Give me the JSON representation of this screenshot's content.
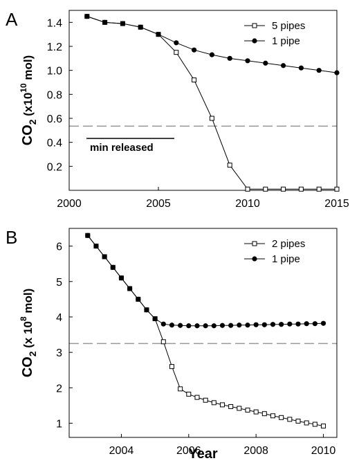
{
  "chart_data": [
    {
      "type": "line",
      "panel_label": "A",
      "ylabel": {
        "main": "CO",
        "sub": "2",
        "mid": " (x10",
        "sup": "10",
        "tail": " mol)"
      },
      "x": [
        2001,
        2002,
        2003,
        2004,
        2005,
        2006,
        2007,
        2008,
        2009,
        2010,
        2011,
        2012,
        2013,
        2014,
        2015
      ],
      "series": [
        {
          "name": "5 pipes",
          "color": "#000000",
          "marker": "square-open",
          "values": [
            1.45,
            1.4,
            1.39,
            1.36,
            1.3,
            1.15,
            0.92,
            0.6,
            0.21,
            0.01,
            0.01,
            0.01,
            0.01,
            0.01,
            0.01
          ]
        },
        {
          "name": "1 pipe",
          "color": "#000000",
          "marker": "circle-filled",
          "values": [
            1.45,
            1.4,
            1.39,
            1.36,
            1.3,
            1.23,
            1.17,
            1.13,
            1.1,
            1.08,
            1.06,
            1.04,
            1.02,
            1.0,
            0.98
          ]
        }
      ],
      "xlim": [
        2000,
        2015
      ],
      "xticks": [
        2000,
        2005,
        2010,
        2015
      ],
      "ylim": [
        0,
        1.5
      ],
      "yticks": [
        0.2,
        0.4,
        0.6,
        0.8,
        {
          "value": 1,
          "label": "1.0"
        },
        1.2,
        1.4
      ],
      "hline": 0.535,
      "hline_color": "#999999",
      "annotation": "min released",
      "legend": "upper-right"
    },
    {
      "type": "line",
      "panel_label": "B",
      "ylabel": {
        "main": "CO",
        "sub": "2",
        "mid": " (x 10",
        "sup": "8",
        "tail": " mol)"
      },
      "xlabel": "Year",
      "x": [
        2003,
        2003.25,
        2003.5,
        2003.75,
        2004,
        2004.25,
        2004.5,
        2004.75,
        2005,
        2005.25,
        2005.5,
        2005.75,
        2006,
        2006.25,
        2006.5,
        2006.75,
        2007,
        2007.25,
        2007.5,
        2007.75,
        2008,
        2008.25,
        2008.5,
        2008.75,
        2009,
        2009.25,
        2009.5,
        2009.75,
        2010
      ],
      "series": [
        {
          "name": "2 pipes",
          "color": "#000000",
          "marker": "square-open",
          "values": [
            6.3,
            6.0,
            5.7,
            5.4,
            5.1,
            4.8,
            4.5,
            4.2,
            3.95,
            3.3,
            2.6,
            1.97,
            1.82,
            1.73,
            1.65,
            1.58,
            1.52,
            1.47,
            1.42,
            1.37,
            1.32,
            1.27,
            1.21,
            1.16,
            1.11,
            1.06,
            1.01,
            0.97,
            0.92
          ]
        },
        {
          "name": "1 pipe",
          "color": "#000000",
          "marker": "circle-filled",
          "values": [
            6.3,
            6.0,
            5.7,
            5.4,
            5.1,
            4.8,
            4.5,
            4.2,
            3.95,
            3.8,
            3.77,
            3.76,
            3.75,
            3.75,
            3.75,
            3.75,
            3.76,
            3.76,
            3.77,
            3.77,
            3.78,
            3.78,
            3.79,
            3.79,
            3.8,
            3.8,
            3.81,
            3.81,
            3.82
          ]
        }
      ],
      "xlim": [
        2002.45,
        2010.4
      ],
      "xticks": [
        2004,
        2006,
        2008,
        2010
      ],
      "ylim": [
        0.6,
        6.5
      ],
      "yticks": [
        1,
        2,
        3,
        4,
        5,
        6
      ],
      "hline": 3.25,
      "hline_color": "#999999",
      "legend": "upper-right"
    }
  ]
}
